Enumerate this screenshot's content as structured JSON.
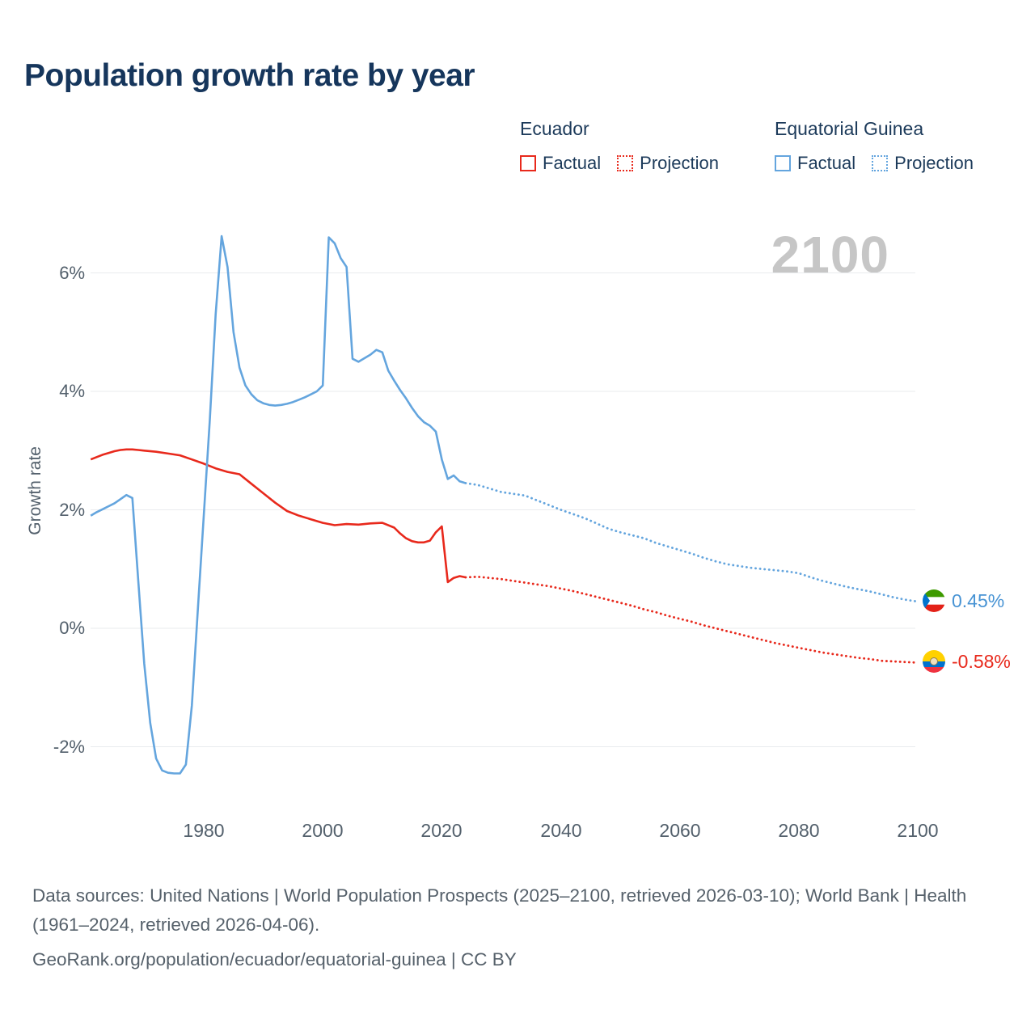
{
  "title": "Population growth rate by year",
  "watermark": "2100",
  "ylabel": "Growth rate",
  "legend": {
    "ecuador": {
      "label": "Ecuador",
      "factual": "Factual",
      "projection": "Projection"
    },
    "equatorial_guinea": {
      "label": "Equatorial Guinea",
      "factual": "Factual",
      "projection": "Projection"
    }
  },
  "colors": {
    "ecuador": "#e8291c",
    "equatorial_guinea": "#64a5de",
    "title": "#16365c",
    "axis_text": "#53606c",
    "grid": "#e9ebee",
    "watermark": "#c6c6c6",
    "footer_text": "#56616b",
    "end_label_blue": "#4793d4"
  },
  "end_labels": {
    "equatorial_guinea": {
      "value": "0.45%",
      "flag": "equatorial-guinea-flag"
    },
    "ecuador": {
      "value": "-0.58%",
      "flag": "ecuador-flag"
    }
  },
  "footer": {
    "sources": "Data sources: United Nations | World Population Prospects (2025–2100, retrieved 2026-03-10); World Bank | Health (1961–2024, retrieved 2026-04-06).",
    "link": "GeoRank.org/population/ecuador/equatorial-guinea | CC BY"
  },
  "chart_data": {
    "type": "line",
    "title": "Population growth rate by year",
    "xlabel": "",
    "ylabel": "Growth rate",
    "x_range": [
      1961,
      2100
    ],
    "ylim": [
      -3.3,
      7.2
    ],
    "grid": "horizontal",
    "legend_position": "top-right",
    "watermark": "2100",
    "yticks": [
      {
        "value": 6,
        "label": "6%"
      },
      {
        "value": 4,
        "label": "4%"
      },
      {
        "value": 2,
        "label": "2%"
      },
      {
        "value": 0,
        "label": "0%"
      },
      {
        "value": -2,
        "label": "-2%"
      }
    ],
    "xticks": [
      {
        "value": 1980,
        "label": "1980"
      },
      {
        "value": 2000,
        "label": "2000"
      },
      {
        "value": 2020,
        "label": "2020"
      },
      {
        "value": 2040,
        "label": "2040"
      },
      {
        "value": 2060,
        "label": "2060"
      },
      {
        "value": 2080,
        "label": "2080"
      },
      {
        "value": 2100,
        "label": "2100"
      }
    ],
    "series": [
      {
        "id": "ecuador-factual",
        "name": "Ecuador Factual",
        "color_key": "ecuador",
        "style": "solid",
        "points": [
          [
            1961,
            2.85
          ],
          [
            1962,
            2.89
          ],
          [
            1963,
            2.93
          ],
          [
            1964,
            2.96
          ],
          [
            1965,
            2.99
          ],
          [
            1966,
            3.01
          ],
          [
            1967,
            3.02
          ],
          [
            1968,
            3.02
          ],
          [
            1969,
            3.01
          ],
          [
            1970,
            3.0
          ],
          [
            1972,
            2.98
          ],
          [
            1974,
            2.95
          ],
          [
            1976,
            2.92
          ],
          [
            1978,
            2.85
          ],
          [
            1980,
            2.78
          ],
          [
            1982,
            2.7
          ],
          [
            1984,
            2.64
          ],
          [
            1986,
            2.6
          ],
          [
            1988,
            2.44
          ],
          [
            1990,
            2.28
          ],
          [
            1992,
            2.12
          ],
          [
            1994,
            1.98
          ],
          [
            1996,
            1.9
          ],
          [
            1998,
            1.84
          ],
          [
            2000,
            1.78
          ],
          [
            2002,
            1.74
          ],
          [
            2004,
            1.76
          ],
          [
            2006,
            1.75
          ],
          [
            2008,
            1.77
          ],
          [
            2010,
            1.78
          ],
          [
            2012,
            1.7
          ],
          [
            2013,
            1.6
          ],
          [
            2014,
            1.52
          ],
          [
            2015,
            1.47
          ],
          [
            2016,
            1.45
          ],
          [
            2017,
            1.45
          ],
          [
            2018,
            1.48
          ],
          [
            2019,
            1.62
          ],
          [
            2020,
            1.72
          ],
          [
            2021,
            0.78
          ],
          [
            2022,
            0.85
          ],
          [
            2023,
            0.88
          ],
          [
            2024,
            0.86
          ]
        ]
      },
      {
        "id": "ecuador-projection",
        "name": "Ecuador Projection",
        "color_key": "ecuador",
        "style": "dotted",
        "points": [
          [
            2024,
            0.86
          ],
          [
            2026,
            0.87
          ],
          [
            2028,
            0.85
          ],
          [
            2030,
            0.83
          ],
          [
            2032,
            0.8
          ],
          [
            2034,
            0.77
          ],
          [
            2036,
            0.74
          ],
          [
            2038,
            0.71
          ],
          [
            2040,
            0.67
          ],
          [
            2042,
            0.63
          ],
          [
            2044,
            0.58
          ],
          [
            2046,
            0.53
          ],
          [
            2048,
            0.48
          ],
          [
            2050,
            0.43
          ],
          [
            2052,
            0.38
          ],
          [
            2054,
            0.32
          ],
          [
            2056,
            0.27
          ],
          [
            2058,
            0.21
          ],
          [
            2060,
            0.16
          ],
          [
            2062,
            0.11
          ],
          [
            2064,
            0.05
          ],
          [
            2066,
            0.0
          ],
          [
            2068,
            -0.05
          ],
          [
            2070,
            -0.1
          ],
          [
            2072,
            -0.15
          ],
          [
            2074,
            -0.2
          ],
          [
            2076,
            -0.25
          ],
          [
            2078,
            -0.29
          ],
          [
            2080,
            -0.33
          ],
          [
            2082,
            -0.37
          ],
          [
            2084,
            -0.41
          ],
          [
            2086,
            -0.44
          ],
          [
            2088,
            -0.47
          ],
          [
            2090,
            -0.5
          ],
          [
            2092,
            -0.52
          ],
          [
            2094,
            -0.55
          ],
          [
            2096,
            -0.56
          ],
          [
            2098,
            -0.57
          ],
          [
            2100,
            -0.58
          ]
        ]
      },
      {
        "id": "equatorial-guinea-factual",
        "name": "Equatorial Guinea Factual",
        "color_key": "equatorial_guinea",
        "style": "solid",
        "points": [
          [
            1961,
            1.9
          ],
          [
            1962,
            1.96
          ],
          [
            1963,
            2.01
          ],
          [
            1964,
            2.06
          ],
          [
            1965,
            2.11
          ],
          [
            1966,
            2.18
          ],
          [
            1967,
            2.25
          ],
          [
            1968,
            2.2
          ],
          [
            1969,
            0.8
          ],
          [
            1970,
            -0.6
          ],
          [
            1971,
            -1.6
          ],
          [
            1972,
            -2.2
          ],
          [
            1973,
            -2.4
          ],
          [
            1974,
            -2.44
          ],
          [
            1975,
            -2.45
          ],
          [
            1976,
            -2.45
          ],
          [
            1977,
            -2.3
          ],
          [
            1978,
            -1.3
          ],
          [
            1979,
            0.3
          ],
          [
            1980,
            1.9
          ],
          [
            1981,
            3.5
          ],
          [
            1982,
            5.3
          ],
          [
            1983,
            6.62
          ],
          [
            1984,
            6.1
          ],
          [
            1985,
            5.0
          ],
          [
            1986,
            4.4
          ],
          [
            1987,
            4.1
          ],
          [
            1988,
            3.95
          ],
          [
            1989,
            3.85
          ],
          [
            1990,
            3.8
          ],
          [
            1991,
            3.77
          ],
          [
            1992,
            3.76
          ],
          [
            1993,
            3.77
          ],
          [
            1994,
            3.79
          ],
          [
            1995,
            3.82
          ],
          [
            1996,
            3.86
          ],
          [
            1997,
            3.9
          ],
          [
            1998,
            3.95
          ],
          [
            1999,
            4.0
          ],
          [
            2000,
            4.1
          ],
          [
            2001,
            6.6
          ],
          [
            2002,
            6.5
          ],
          [
            2003,
            6.25
          ],
          [
            2004,
            6.1
          ],
          [
            2005,
            4.55
          ],
          [
            2006,
            4.5
          ],
          [
            2007,
            4.56
          ],
          [
            2008,
            4.62
          ],
          [
            2009,
            4.7
          ],
          [
            2010,
            4.66
          ],
          [
            2011,
            4.35
          ],
          [
            2012,
            4.18
          ],
          [
            2013,
            4.02
          ],
          [
            2014,
            3.88
          ],
          [
            2015,
            3.72
          ],
          [
            2016,
            3.58
          ],
          [
            2017,
            3.48
          ],
          [
            2018,
            3.42
          ],
          [
            2019,
            3.32
          ],
          [
            2020,
            2.85
          ],
          [
            2021,
            2.52
          ],
          [
            2022,
            2.58
          ],
          [
            2023,
            2.48
          ],
          [
            2024,
            2.45
          ]
        ]
      },
      {
        "id": "equatorial-guinea-projection",
        "name": "Equatorial Guinea Projection",
        "color_key": "equatorial_guinea",
        "style": "dotted",
        "points": [
          [
            2024,
            2.45
          ],
          [
            2026,
            2.42
          ],
          [
            2028,
            2.36
          ],
          [
            2030,
            2.3
          ],
          [
            2032,
            2.27
          ],
          [
            2034,
            2.24
          ],
          [
            2036,
            2.16
          ],
          [
            2038,
            2.08
          ],
          [
            2040,
            2.0
          ],
          [
            2042,
            1.93
          ],
          [
            2044,
            1.86
          ],
          [
            2046,
            1.77
          ],
          [
            2048,
            1.68
          ],
          [
            2050,
            1.62
          ],
          [
            2052,
            1.57
          ],
          [
            2054,
            1.52
          ],
          [
            2056,
            1.44
          ],
          [
            2058,
            1.38
          ],
          [
            2060,
            1.32
          ],
          [
            2062,
            1.26
          ],
          [
            2064,
            1.19
          ],
          [
            2066,
            1.13
          ],
          [
            2068,
            1.08
          ],
          [
            2070,
            1.05
          ],
          [
            2072,
            1.02
          ],
          [
            2074,
            1.0
          ],
          [
            2076,
            0.98
          ],
          [
            2078,
            0.96
          ],
          [
            2080,
            0.93
          ],
          [
            2082,
            0.86
          ],
          [
            2084,
            0.8
          ],
          [
            2086,
            0.75
          ],
          [
            2088,
            0.7
          ],
          [
            2090,
            0.66
          ],
          [
            2092,
            0.62
          ],
          [
            2094,
            0.57
          ],
          [
            2096,
            0.52
          ],
          [
            2098,
            0.48
          ],
          [
            2100,
            0.45
          ]
        ]
      }
    ]
  }
}
